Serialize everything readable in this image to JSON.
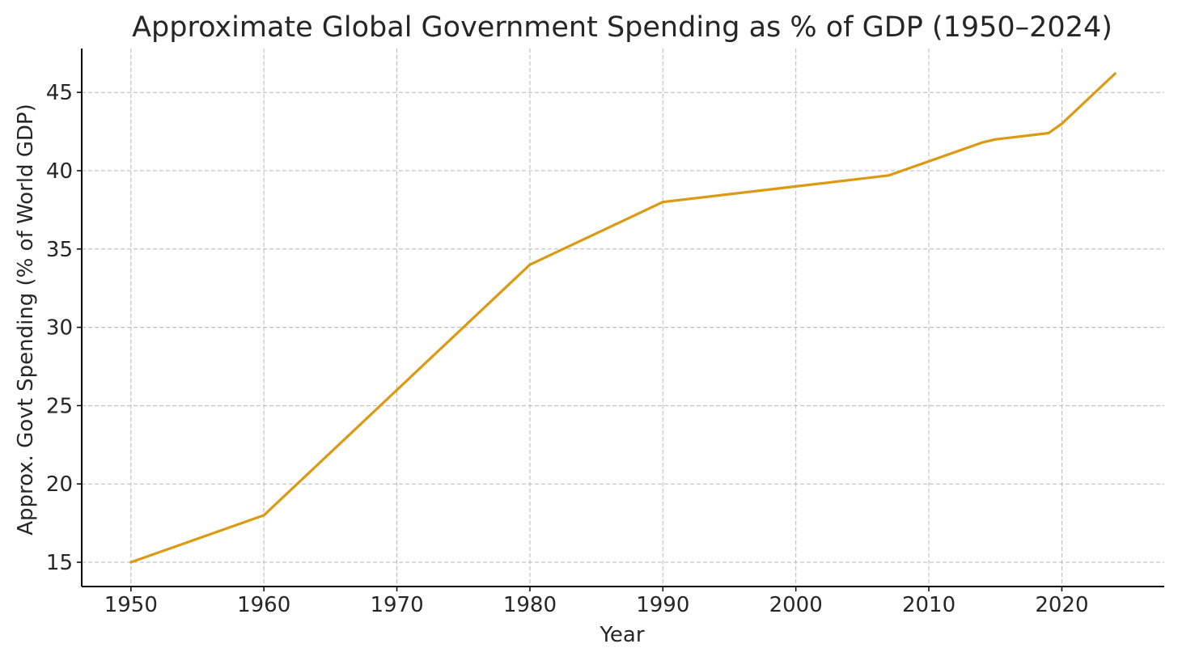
{
  "chart_data": {
    "type": "line",
    "title": "Approximate Global Government Spending as % of GDP (1950–2024)",
    "xlabel": "Year",
    "ylabel": "Approx. Govt Spending (% of World GDP)",
    "xlim": [
      1946.3,
      2027.7
    ],
    "ylim": [
      13.45,
      47.8
    ],
    "x_ticks": [
      1950,
      1960,
      1970,
      1980,
      1990,
      2000,
      2010,
      2020
    ],
    "y_ticks": [
      15,
      20,
      25,
      30,
      35,
      40,
      45
    ],
    "grid": true,
    "grid_style": "dashed",
    "series": [
      {
        "color": "#DB9A12",
        "x": [
          1950,
          1960,
          1970,
          1980,
          1990,
          2000,
          2007,
          2014,
          2015,
          2019,
          2020,
          2024
        ],
        "y": [
          15.0,
          18.0,
          26.0,
          34.0,
          38.0,
          39.0,
          39.7,
          41.8,
          42.0,
          42.4,
          43.0,
          46.2
        ]
      }
    ]
  }
}
